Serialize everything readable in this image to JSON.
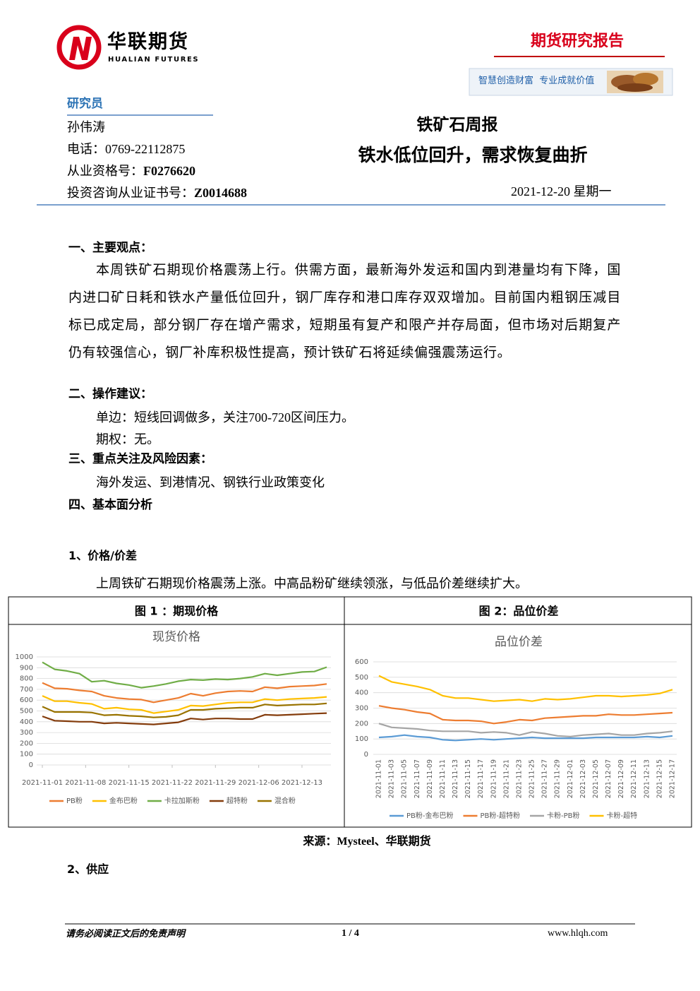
{
  "header": {
    "company": "华联期货",
    "company_en": "HUALIAN FUTURES",
    "report_type": "期货研究报告",
    "slogan": "智慧创造财富  专业成就价值"
  },
  "researcher": {
    "label": "研究员",
    "name": "孙伟涛",
    "phone": "电话：0769-22112875",
    "qualification": {
      "label": "从业资格号：",
      "value": "F0276620"
    },
    "certificate": {
      "label": "投资咨询从业证书号：",
      "value": "Z0014688"
    }
  },
  "report": {
    "title": "铁矿石周报",
    "subtitle": "铁水低位回升，需求恢复曲折",
    "date": "2021-12-20 星期一"
  },
  "sections": [
    {
      "heading": "一、主要观点：",
      "paragraphs": [
        "本周铁矿石期现价格震荡上行。供需方面，最新海外发运和国内到港量均有下降，国内进口矿日耗和铁水产量低位回升，钢厂库存和港口库存双双增加。目前国内粗钢压减目标已成定局，部分钢厂存在增产需求，短期虽有复产和限产并存局面，但市场对后期复产仍有较强信心，钢厂补库积极性提高，预计铁矿石将延续偏强震荡运行。"
      ]
    },
    {
      "heading": "二、操作建议：",
      "paragraphs": [
        "单边：短线回调做多，关注700-720区间压力。",
        "期权：无。"
      ]
    },
    {
      "heading": "三、重点关注及风险因素：",
      "paragraphs": [
        "海外发运、到港情况、钢铁行业政策变化"
      ]
    },
    {
      "heading": "四、基本面分析",
      "paragraphs": []
    },
    {
      "heading": "1、价格/价差",
      "paragraphs": [
        "上周铁矿石期现价格震荡上涨。中高品粉矿继续领涨，与低品价差继续扩大。"
      ]
    },
    {
      "heading": "2、供应",
      "paragraphs": []
    }
  ],
  "chart_data": [
    {
      "type": "line",
      "caption": "图 1 ：期现价格",
      "title": "现货价格",
      "x": [
        "2021-11-01",
        "2021-11-03",
        "2021-11-05",
        "2021-11-07",
        "2021-11-09",
        "2021-11-11",
        "2021-11-13",
        "2021-11-15",
        "2021-11-17",
        "2021-11-19",
        "2021-11-21",
        "2021-11-23",
        "2021-11-25",
        "2021-11-27",
        "2021-11-29",
        "2021-12-01",
        "2021-12-03",
        "2021-12-05",
        "2021-12-07",
        "2021-12-09",
        "2021-12-11",
        "2021-12-13",
        "2021-12-15",
        "2021-12-17"
      ],
      "xlim": [
        "2021-11-01",
        "2021-12-17"
      ],
      "xticks": [
        "2021-11-01",
        "2021-11-08",
        "2021-11-15",
        "2021-11-22",
        "2021-11-29",
        "2021-12-06",
        "2021-12-13"
      ],
      "ylim": [
        0,
        1000
      ],
      "yticks": [
        0,
        100,
        200,
        300,
        400,
        500,
        600,
        700,
        800,
        900,
        1000
      ],
      "grid": true,
      "legend": "bottom",
      "series": [
        {
          "name": "PB粉",
          "color": "#ed7d31",
          "values": [
            760,
            710,
            705,
            690,
            680,
            640,
            620,
            610,
            605,
            580,
            600,
            620,
            660,
            640,
            665,
            680,
            685,
            680,
            720,
            710,
            725,
            730,
            735,
            750
          ]
        },
        {
          "name": "金布巴粉",
          "color": "#ffc000",
          "values": [
            640,
            590,
            590,
            575,
            565,
            520,
            530,
            515,
            510,
            480,
            495,
            510,
            550,
            545,
            560,
            575,
            580,
            580,
            610,
            600,
            610,
            615,
            620,
            630
          ]
        },
        {
          "name": "卡拉加斯粉",
          "color": "#70ad47",
          "values": [
            950,
            885,
            870,
            845,
            770,
            780,
            755,
            740,
            715,
            730,
            750,
            775,
            790,
            785,
            795,
            790,
            800,
            815,
            845,
            830,
            845,
            860,
            865,
            905
          ]
        },
        {
          "name": "超特粉",
          "color": "#843c0c",
          "values": [
            450,
            410,
            405,
            400,
            400,
            385,
            390,
            385,
            380,
            375,
            385,
            395,
            430,
            420,
            430,
            430,
            425,
            425,
            465,
            460,
            465,
            470,
            475,
            480
          ]
        },
        {
          "name": "混合粉",
          "color": "#997300",
          "values": [
            540,
            490,
            490,
            490,
            485,
            460,
            465,
            455,
            450,
            440,
            445,
            460,
            510,
            510,
            520,
            525,
            530,
            530,
            560,
            550,
            555,
            560,
            560,
            570
          ]
        }
      ]
    },
    {
      "type": "line",
      "caption": "图 2：品位价差",
      "title": "品位价差",
      "categories": [
        "2021-11-01",
        "2021-11-03",
        "2021-11-05",
        "2021-11-07",
        "2021-11-09",
        "2021-11-11",
        "2021-11-13",
        "2021-11-15",
        "2021-11-17",
        "2021-11-19",
        "2021-11-21",
        "2021-11-23",
        "2021-11-25",
        "2021-11-27",
        "2021-11-29",
        "2021-12-01",
        "2021-12-03",
        "2021-12-05",
        "2021-12-07",
        "2021-12-09",
        "2021-12-11",
        "2021-12-13",
        "2021-12-15",
        "2021-12-17"
      ],
      "ylim": [
        0,
        600
      ],
      "yticks": [
        0,
        100,
        200,
        300,
        400,
        500,
        600
      ],
      "grid": true,
      "legend": "bottom",
      "series": [
        {
          "name": "PB粉-金布巴粉",
          "color": "#5b9bd5",
          "values": [
            110,
            115,
            125,
            115,
            110,
            95,
            90,
            95,
            100,
            95,
            100,
            105,
            110,
            105,
            105,
            105,
            105,
            110,
            110,
            110,
            110,
            115,
            110,
            120
          ]
        },
        {
          "name": "PB粉-超特粉",
          "color": "#ed7d31",
          "values": [
            315,
            300,
            290,
            275,
            265,
            225,
            220,
            220,
            215,
            200,
            210,
            225,
            220,
            235,
            240,
            245,
            250,
            250,
            260,
            255,
            255,
            260,
            265,
            270
          ]
        },
        {
          "name": "卡粉-PB粉",
          "color": "#a5a5a5",
          "values": [
            200,
            175,
            170,
            165,
            155,
            150,
            150,
            150,
            140,
            145,
            140,
            125,
            145,
            135,
            120,
            115,
            125,
            130,
            135,
            125,
            125,
            135,
            140,
            150
          ]
        },
        {
          "name": "卡粉-超特",
          "color": "#ffc000",
          "values": [
            510,
            470,
            455,
            440,
            420,
            380,
            365,
            365,
            355,
            345,
            350,
            355,
            345,
            360,
            355,
            360,
            370,
            380,
            380,
            375,
            380,
            385,
            395,
            420
          ]
        }
      ]
    }
  ],
  "source": "来源：Mysteel、华联期货",
  "footer": {
    "disclaimer": "请务必阅读正文后的免责声明",
    "page": "1 / 4",
    "website": "www.hlqh.com"
  }
}
